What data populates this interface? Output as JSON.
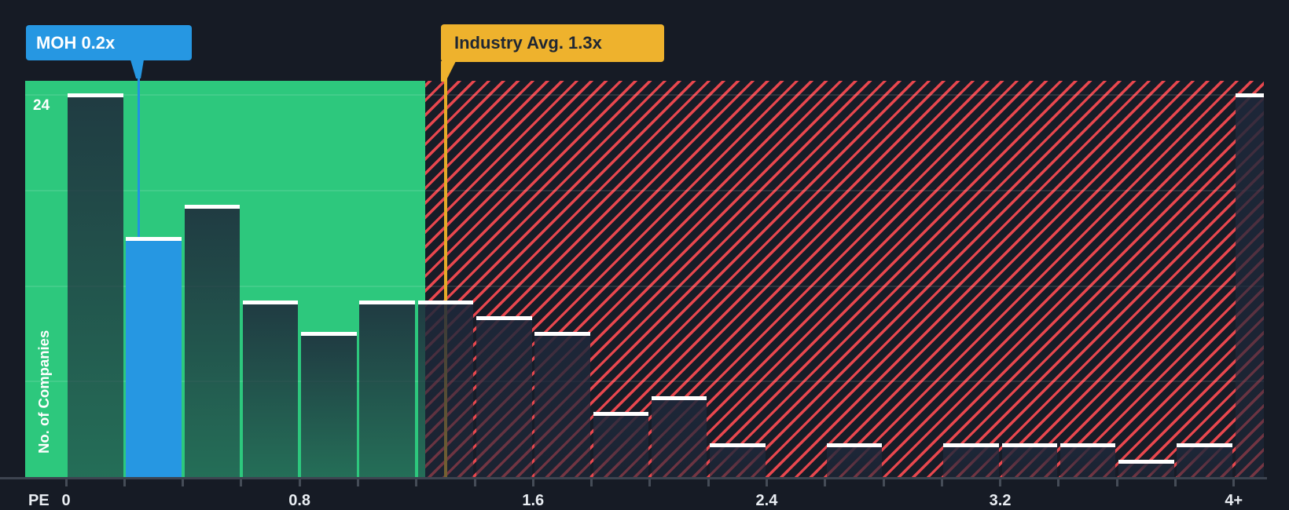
{
  "colors": {
    "background": "#161b25",
    "green_zone": "#2dc87d",
    "company_blue": "#2697e2",
    "industry_yellow": "#eeb22d",
    "industry_line_yellow": "#e4ab28",
    "hatch_red": "#e8474e",
    "bar_cap_white": "#ffffff",
    "axis_text": "#e9edf2"
  },
  "callouts": {
    "company": {
      "label": "MOH 0.2x"
    },
    "industry": {
      "label": "Industry Avg. 1.3x"
    }
  },
  "axis": {
    "x_title": "PE",
    "y_title": "No. of Companies",
    "y_top_tick": "24"
  },
  "chart_data": {
    "type": "bar",
    "xlabel": "PE",
    "ylabel": "No. of Companies",
    "ylim": [
      0,
      24
    ],
    "bucket_width": 0.2,
    "x_bucket_starts": [
      0,
      0.2,
      0.4,
      0.6,
      0.8,
      1.0,
      1.2,
      1.4,
      1.6,
      1.8,
      2.0,
      2.2,
      2.4,
      2.6,
      2.8,
      3.0,
      3.2,
      3.4,
      3.6,
      3.8,
      4.0
    ],
    "values": [
      24,
      15,
      17,
      11,
      9,
      11,
      11,
      10,
      9,
      4,
      5,
      2,
      0,
      2,
      0,
      2,
      2,
      2,
      1,
      2,
      24
    ],
    "last_bucket_label": "4+",
    "xticks": [
      {
        "value": 0,
        "label": "0"
      },
      {
        "value": 0.8,
        "label": "0.8"
      },
      {
        "value": 1.6,
        "label": "1.6"
      },
      {
        "value": 2.4,
        "label": "2.4"
      },
      {
        "value": 3.2,
        "label": "3.2"
      },
      {
        "value": 4,
        "label": "4+"
      }
    ],
    "y_gridline_counts": [
      6,
      12,
      18,
      24
    ],
    "y_axis_top_label": "24",
    "highlight": {
      "name": "MOH",
      "pe_label": "MOH 0.2x",
      "bar_index": 1,
      "pointer_x": 0.25
    },
    "industry_avg": {
      "pe": 1.3,
      "label": "Industry Avg. 1.3x"
    },
    "zones": {
      "below_avg": "solid-green",
      "above_avg": "hatched-red"
    },
    "legend": "none",
    "grid": "horizontal-faint"
  }
}
